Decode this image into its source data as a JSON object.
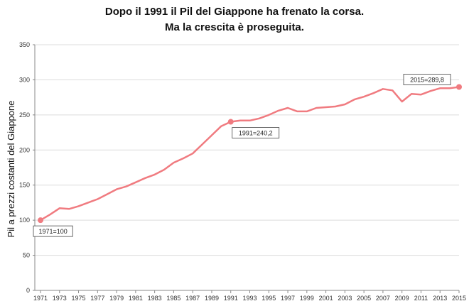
{
  "chart_data": {
    "type": "line",
    "title_lines": [
      "Dopo il 1991 il Pil del Giappone ha frenato la corsa.",
      "Ma la crescita è proseguita."
    ],
    "ylabel": "Pil a prezzi costanti del Giappone",
    "xlabel": "",
    "ylim": [
      0,
      350
    ],
    "yticks": [
      0,
      50,
      100,
      150,
      200,
      250,
      300,
      350
    ],
    "xlim": [
      1971,
      2015
    ],
    "xticks": [
      1971,
      1973,
      1975,
      1977,
      1979,
      1981,
      1983,
      1985,
      1987,
      1989,
      1991,
      1993,
      1995,
      1997,
      1999,
      2001,
      2003,
      2005,
      2007,
      2009,
      2011,
      2013,
      2015
    ],
    "grid": "horizontal",
    "line_color": "#f07b80",
    "series": [
      {
        "x": [
          1971,
          1972,
          1973,
          1974,
          1975,
          1976,
          1977,
          1978,
          1979,
          1980,
          1981,
          1982,
          1983,
          1984,
          1985,
          1986,
          1987,
          1988,
          1989,
          1990,
          1991,
          1992,
          1993,
          1994,
          1995,
          1996,
          1997,
          1998,
          1999,
          2000,
          2001,
          2002,
          2003,
          2004,
          2005,
          2006,
          2007,
          2008,
          2009,
          2010,
          2011,
          2012,
          2013,
          2014,
          2015
        ],
        "values": [
          100,
          108,
          117,
          116,
          120,
          125,
          130,
          137,
          144,
          148,
          154,
          160,
          165,
          172,
          182,
          188,
          195,
          208,
          221,
          234,
          240.2,
          242,
          242,
          245,
          250,
          256,
          260,
          255,
          255,
          260,
          261,
          262,
          265,
          272,
          276,
          281,
          287,
          285,
          269,
          280,
          279,
          284,
          288,
          288,
          289.8
        ]
      }
    ],
    "markers": [
      {
        "x": 1971,
        "y": 100,
        "label": "1971=100",
        "position": "below"
      },
      {
        "x": 1991,
        "y": 240.2,
        "label": "1991=240,2",
        "position": "below"
      },
      {
        "x": 2015,
        "y": 289.8,
        "label": "2015=289,8",
        "position": "left"
      }
    ]
  }
}
